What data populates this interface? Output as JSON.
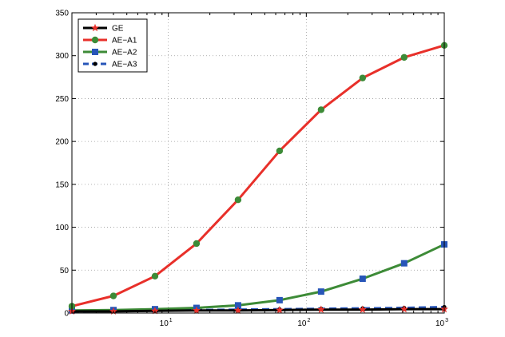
{
  "chart_data": {
    "type": "line",
    "x_scale": "log",
    "xlim": [
      2,
      1000
    ],
    "ylim": [
      0,
      350
    ],
    "grid": true,
    "legend_position": "top-left",
    "x_tick_labels": [
      {
        "value": 10,
        "base": "10",
        "exp": "1"
      },
      {
        "value": 100,
        "base": "10",
        "exp": "2"
      },
      {
        "value": 1000,
        "base": "10",
        "exp": "3"
      }
    ],
    "y_ticks": [
      0,
      50,
      100,
      150,
      200,
      250,
      300,
      350
    ],
    "x": [
      2,
      4,
      8,
      16,
      32,
      64,
      128,
      256,
      512,
      1024
    ],
    "series": [
      {
        "name": "GE",
        "color": "#000000",
        "marker": "star",
        "marker_color": "#e8302a",
        "style": "solid",
        "values": [
          2,
          2,
          2.5,
          3,
          3,
          3.5,
          4,
          4,
          4.5,
          4.5
        ]
      },
      {
        "name": "AE−A1",
        "color": "#e8302a",
        "marker": "circle",
        "marker_color": "#3d8b37",
        "style": "solid",
        "values": [
          8,
          20,
          43,
          81,
          132,
          189,
          237,
          274,
          298,
          312
        ]
      },
      {
        "name": "AE−A2",
        "color": "#3d8b37",
        "marker": "square",
        "marker_color": "#2755b8",
        "style": "solid",
        "values": [
          3,
          3.5,
          4.5,
          6,
          9,
          15,
          25,
          40,
          58,
          80
        ]
      },
      {
        "name": "AE−A3",
        "color": "#2755b8",
        "marker": "dot",
        "marker_color": "#000000",
        "style": "dashed",
        "values": [
          2,
          2.5,
          3,
          3.5,
          4,
          4.5,
          5,
          5.5,
          6,
          7
        ]
      }
    ]
  }
}
